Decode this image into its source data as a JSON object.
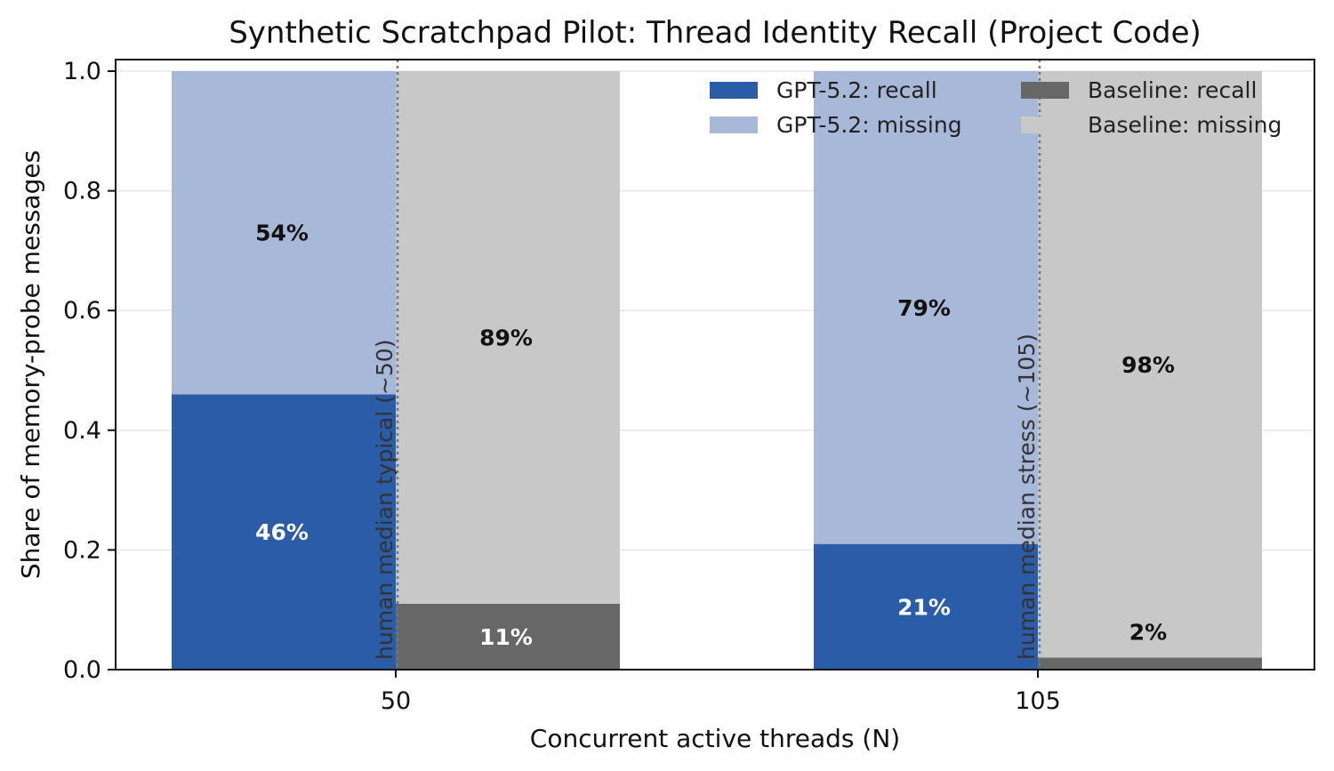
{
  "colors": {
    "gpt_recall": "#2b5ca8",
    "gpt_missing": "#a7b8d8",
    "base_recall": "#676767",
    "base_missing": "#c8c8c8",
    "grid": "#e6e6e6",
    "axis": "#111111",
    "vline": "#777777"
  },
  "chart_data": {
    "type": "bar",
    "title": "Synthetic Scratchpad Pilot: Thread Identity Recall (Project Code)",
    "xlabel": "Concurrent active threads (N)",
    "ylabel": "Share of memory-probe messages",
    "categories": [
      "50",
      "105"
    ],
    "ylim": [
      0,
      1.0
    ],
    "yticks": [
      "0.0",
      "0.2",
      "0.4",
      "0.6",
      "0.8",
      "1.0"
    ],
    "grid": "horizontal",
    "legend_position": "top-right",
    "stacked": true,
    "series": [
      {
        "name": "GPT-5.2: recall",
        "group": "GPT-5.2",
        "part": "recall",
        "values": [
          0.46,
          0.21
        ],
        "labels": [
          "46%",
          "21%"
        ]
      },
      {
        "name": "GPT-5.2: missing",
        "group": "GPT-5.2",
        "part": "missing",
        "values": [
          0.54,
          0.79
        ],
        "labels": [
          "54%",
          "79%"
        ]
      },
      {
        "name": "Baseline: recall",
        "group": "Baseline",
        "part": "recall",
        "values": [
          0.11,
          0.02
        ],
        "labels": [
          "11%",
          "2%"
        ]
      },
      {
        "name": "Baseline: missing",
        "group": "Baseline",
        "part": "missing",
        "values": [
          0.89,
          0.98
        ],
        "labels": [
          "89%",
          "98%"
        ]
      }
    ],
    "reference_lines": [
      {
        "x": "50",
        "label": "human median typical (~50)"
      },
      {
        "x": "105",
        "label": "human median stress (~105)"
      }
    ]
  }
}
